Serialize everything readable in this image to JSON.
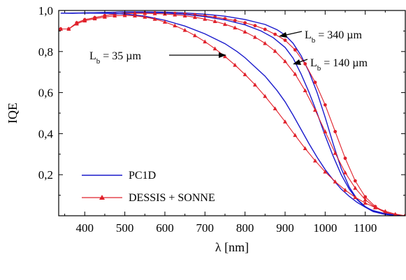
{
  "chart_data": {
    "type": "line",
    "title": "",
    "xlabel": "λ [nm]",
    "ylabel": "IQE",
    "xlim": [
      335,
      1200
    ],
    "ylim": [
      0,
      1.0
    ],
    "grid": false,
    "legend_placement": "bottom-left",
    "x_ticks": [
      400,
      500,
      600,
      700,
      800,
      900,
      1000,
      1100
    ],
    "y_ticks": [
      0.2,
      0.4,
      0.6,
      0.8,
      1.0
    ],
    "y_tick_labels": [
      "0,2",
      "0,4",
      "0,6",
      "0,8",
      "1,0"
    ],
    "x_tick_labels": [
      "400",
      "500",
      "600",
      "700",
      "800",
      "900",
      "1000",
      "1100"
    ],
    "colors": {
      "pc1d": "#1a1acc",
      "dessis": "#e0202a",
      "axis": "#000000"
    },
    "legend": [
      {
        "label": "PC1D",
        "marker": "none",
        "color": "#1a1acc"
      },
      {
        "label": "DESSIS + SONNE",
        "marker": "triangle",
        "color": "#e0202a"
      }
    ],
    "annotations": [
      {
        "label_main": "L",
        "label_sub": "b",
        "label_rest": " = 35 µm"
      },
      {
        "label_main": "L",
        "label_sub": "b",
        "label_rest": " = 340 µm"
      },
      {
        "label_main": "L",
        "label_sub": "b",
        "label_rest": " = 140 µm"
      }
    ],
    "series": [
      {
        "model": "PC1D",
        "Lb_um": 340,
        "style": "solid",
        "points": [
          [
            340,
            0.987
          ],
          [
            370,
            0.986
          ],
          [
            400,
            0.988
          ],
          [
            450,
            0.99
          ],
          [
            500,
            0.993
          ],
          [
            550,
            0.993
          ],
          [
            600,
            0.992
          ],
          [
            650,
            0.988
          ],
          [
            700,
            0.982
          ],
          [
            750,
            0.972
          ],
          [
            800,
            0.956
          ],
          [
            850,
            0.932
          ],
          [
            880,
            0.906
          ],
          [
            900,
            0.88
          ],
          [
            920,
            0.84
          ],
          [
            940,
            0.78
          ],
          [
            960,
            0.7
          ],
          [
            980,
            0.6
          ],
          [
            1000,
            0.48
          ],
          [
            1020,
            0.35
          ],
          [
            1040,
            0.23
          ],
          [
            1060,
            0.14
          ],
          [
            1080,
            0.08
          ],
          [
            1100,
            0.045
          ],
          [
            1120,
            0.022
          ],
          [
            1150,
            0.008
          ],
          [
            1180,
            0.002
          ],
          [
            1200,
            0.0
          ]
        ]
      },
      {
        "model": "DESSIS + SONNE",
        "Lb_um": 340,
        "style": "marker-circle",
        "points": [
          [
            340,
            0.91
          ],
          [
            360,
            0.91
          ],
          [
            380,
            0.94
          ],
          [
            400,
            0.955
          ],
          [
            425,
            0.965
          ],
          [
            450,
            0.975
          ],
          [
            475,
            0.983
          ],
          [
            500,
            0.986
          ],
          [
            525,
            0.988
          ],
          [
            550,
            0.989
          ],
          [
            575,
            0.989
          ],
          [
            600,
            0.988
          ],
          [
            625,
            0.986
          ],
          [
            650,
            0.983
          ],
          [
            675,
            0.979
          ],
          [
            700,
            0.974
          ],
          [
            725,
            0.968
          ],
          [
            750,
            0.96
          ],
          [
            775,
            0.951
          ],
          [
            800,
            0.94
          ],
          [
            825,
            0.926
          ],
          [
            850,
            0.908
          ],
          [
            875,
            0.884
          ],
          [
            900,
            0.855
          ],
          [
            925,
            0.808
          ],
          [
            950,
            0.74
          ],
          [
            975,
            0.65
          ],
          [
            1000,
            0.54
          ],
          [
            1025,
            0.41
          ],
          [
            1050,
            0.28
          ],
          [
            1075,
            0.17
          ],
          [
            1100,
            0.092
          ],
          [
            1125,
            0.045
          ],
          [
            1150,
            0.018
          ],
          [
            1175,
            0.004
          ],
          [
            1200,
            0.0
          ]
        ]
      },
      {
        "model": "PC1D",
        "Lb_um": 140,
        "style": "solid",
        "points": [
          [
            340,
            0.987
          ],
          [
            400,
            0.988
          ],
          [
            450,
            0.99
          ],
          [
            500,
            0.992
          ],
          [
            550,
            0.991
          ],
          [
            600,
            0.988
          ],
          [
            650,
            0.981
          ],
          [
            700,
            0.97
          ],
          [
            750,
            0.954
          ],
          [
            800,
            0.93
          ],
          [
            840,
            0.9
          ],
          [
            870,
            0.868
          ],
          [
            900,
            0.82
          ],
          [
            920,
            0.768
          ],
          [
            940,
            0.69
          ],
          [
            960,
            0.6
          ],
          [
            980,
            0.5
          ],
          [
            1000,
            0.39
          ],
          [
            1020,
            0.29
          ],
          [
            1040,
            0.2
          ],
          [
            1060,
            0.13
          ],
          [
            1080,
            0.078
          ],
          [
            1100,
            0.042
          ],
          [
            1120,
            0.02
          ],
          [
            1150,
            0.006
          ],
          [
            1180,
            0.001
          ],
          [
            1200,
            0.0
          ]
        ]
      },
      {
        "model": "DESSIS + SONNE",
        "Lb_um": 140,
        "style": "marker-triangle",
        "points": [
          [
            340,
            0.91
          ],
          [
            360,
            0.91
          ],
          [
            380,
            0.94
          ],
          [
            400,
            0.955
          ],
          [
            425,
            0.965
          ],
          [
            450,
            0.975
          ],
          [
            475,
            0.982
          ],
          [
            500,
            0.985
          ],
          [
            525,
            0.986
          ],
          [
            550,
            0.986
          ],
          [
            575,
            0.985
          ],
          [
            600,
            0.983
          ],
          [
            625,
            0.979
          ],
          [
            650,
            0.974
          ],
          [
            675,
            0.967
          ],
          [
            700,
            0.958
          ],
          [
            725,
            0.947
          ],
          [
            750,
            0.933
          ],
          [
            775,
            0.916
          ],
          [
            800,
            0.896
          ],
          [
            825,
            0.87
          ],
          [
            850,
            0.84
          ],
          [
            875,
            0.802
          ],
          [
            900,
            0.752
          ],
          [
            925,
            0.69
          ],
          [
            950,
            0.61
          ],
          [
            975,
            0.515
          ],
          [
            1000,
            0.41
          ],
          [
            1025,
            0.305
          ],
          [
            1050,
            0.21
          ],
          [
            1075,
            0.135
          ],
          [
            1100,
            0.078
          ],
          [
            1125,
            0.04
          ],
          [
            1150,
            0.016
          ],
          [
            1175,
            0.004
          ],
          [
            1200,
            0.0
          ]
        ]
      },
      {
        "model": "PC1D",
        "Lb_um": 35,
        "style": "solid",
        "points": [
          [
            340,
            0.987
          ],
          [
            400,
            0.987
          ],
          [
            450,
            0.986
          ],
          [
            500,
            0.983
          ],
          [
            550,
            0.972
          ],
          [
            600,
            0.952
          ],
          [
            650,
            0.924
          ],
          [
            700,
            0.886
          ],
          [
            750,
            0.838
          ],
          [
            780,
            0.8
          ],
          [
            800,
            0.77
          ],
          [
            850,
            0.68
          ],
          [
            880,
            0.61
          ],
          [
            900,
            0.555
          ],
          [
            920,
            0.49
          ],
          [
            940,
            0.42
          ],
          [
            960,
            0.35
          ],
          [
            980,
            0.285
          ],
          [
            1000,
            0.225
          ],
          [
            1020,
            0.175
          ],
          [
            1040,
            0.13
          ],
          [
            1060,
            0.095
          ],
          [
            1080,
            0.065
          ],
          [
            1100,
            0.042
          ],
          [
            1120,
            0.025
          ],
          [
            1150,
            0.01
          ],
          [
            1180,
            0.002
          ],
          [
            1200,
            0.0
          ]
        ]
      },
      {
        "model": "DESSIS + SONNE",
        "Lb_um": 35,
        "style": "marker-triangle",
        "points": [
          [
            340,
            0.91
          ],
          [
            360,
            0.91
          ],
          [
            380,
            0.935
          ],
          [
            400,
            0.95
          ],
          [
            425,
            0.96
          ],
          [
            450,
            0.968
          ],
          [
            475,
            0.974
          ],
          [
            500,
            0.976
          ],
          [
            525,
            0.974
          ],
          [
            550,
            0.968
          ],
          [
            575,
            0.958
          ],
          [
            600,
            0.944
          ],
          [
            625,
            0.926
          ],
          [
            650,
            0.904
          ],
          [
            675,
            0.878
          ],
          [
            700,
            0.848
          ],
          [
            725,
            0.814
          ],
          [
            750,
            0.776
          ],
          [
            775,
            0.734
          ],
          [
            800,
            0.688
          ],
          [
            825,
            0.638
          ],
          [
            850,
            0.582
          ],
          [
            875,
            0.522
          ],
          [
            900,
            0.458
          ],
          [
            925,
            0.392
          ],
          [
            950,
            0.328
          ],
          [
            975,
            0.268
          ],
          [
            1000,
            0.214
          ],
          [
            1025,
            0.166
          ],
          [
            1050,
            0.125
          ],
          [
            1075,
            0.09
          ],
          [
            1100,
            0.062
          ],
          [
            1125,
            0.04
          ],
          [
            1150,
            0.022
          ],
          [
            1175,
            0.008
          ],
          [
            1200,
            0.0
          ]
        ]
      }
    ]
  }
}
